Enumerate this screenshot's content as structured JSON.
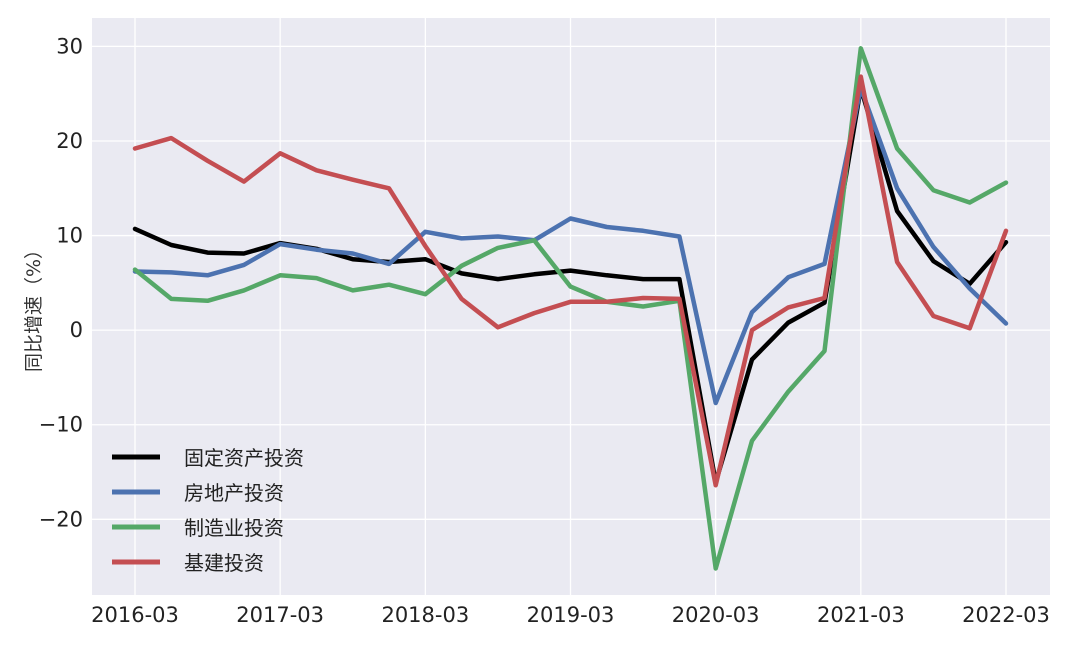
{
  "chart_data": {
    "type": "line",
    "title": "",
    "xlabel": "",
    "ylabel": "同比增速（%）",
    "ylim": [
      -28,
      33
    ],
    "yticks": [
      30,
      20,
      10,
      0,
      -10,
      -20
    ],
    "ytick_labels": [
      "30",
      "20",
      "10",
      "0",
      "−10",
      "−20"
    ],
    "xtick_labels": [
      "2016-03",
      "2017-03",
      "2018-03",
      "2019-03",
      "2020-03",
      "2021-03",
      "2022-03"
    ],
    "x": [
      "2016-03",
      "2016-06",
      "2016-09",
      "2016-12",
      "2017-03",
      "2017-06",
      "2017-09",
      "2017-12",
      "2018-03",
      "2018-06",
      "2018-09",
      "2018-12",
      "2019-03",
      "2019-06",
      "2019-09",
      "2019-12",
      "2020-03",
      "2020-06",
      "2020-09",
      "2020-12",
      "2021-03",
      "2021-06",
      "2021-09",
      "2021-12",
      "2022-03"
    ],
    "grid": true,
    "legend_position": "lower-left",
    "series": [
      {
        "name": "固定资产投资",
        "color": "#000000",
        "values": [
          10.7,
          9.0,
          8.2,
          8.1,
          9.2,
          8.6,
          7.5,
          7.2,
          7.5,
          6.0,
          5.4,
          5.9,
          6.3,
          5.8,
          5.4,
          5.4,
          -16.1,
          -3.1,
          0.8,
          2.9,
          25.6,
          12.6,
          7.3,
          4.9,
          9.3
        ]
      },
      {
        "name": "房地产投资",
        "color": "#4c72b0",
        "values": [
          6.2,
          6.1,
          5.8,
          6.9,
          9.1,
          8.5,
          8.1,
          7.0,
          10.4,
          9.7,
          9.9,
          9.5,
          11.8,
          10.9,
          10.5,
          9.9,
          -7.7,
          1.9,
          5.6,
          7.0,
          25.6,
          15.0,
          8.8,
          4.4,
          0.7
        ]
      },
      {
        "name": "制造业投资",
        "color": "#55a868",
        "values": [
          6.4,
          3.3,
          3.1,
          4.2,
          5.8,
          5.5,
          4.2,
          4.8,
          3.8,
          6.8,
          8.7,
          9.5,
          4.6,
          3.0,
          2.5,
          3.1,
          -25.2,
          -11.7,
          -6.5,
          -2.2,
          29.8,
          19.2,
          14.8,
          13.5,
          15.6
        ]
      },
      {
        "name": "基建投资",
        "color": "#c44e52",
        "values": [
          19.2,
          20.3,
          17.9,
          15.7,
          18.7,
          16.9,
          15.9,
          15.0,
          8.9,
          3.3,
          0.3,
          1.8,
          3.0,
          3.0,
          3.4,
          3.3,
          -16.4,
          0.0,
          2.4,
          3.4,
          26.8,
          7.2,
          1.5,
          0.2,
          10.5
        ]
      }
    ]
  }
}
